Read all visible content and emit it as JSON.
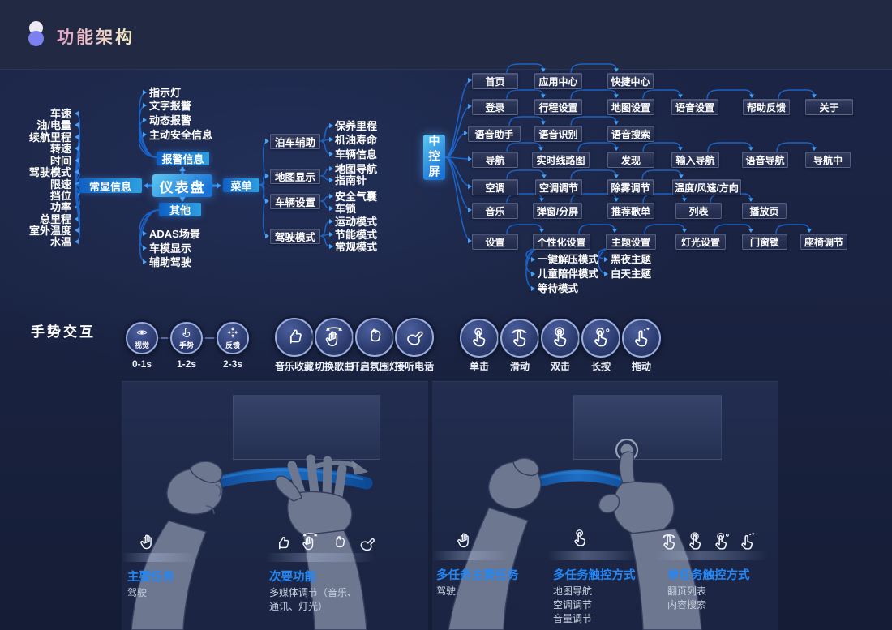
{
  "header": {
    "title": "功能架构"
  },
  "colors": {
    "accent_blue": "#2288f8",
    "line_blue": "#1c63c8",
    "node_bright_from": "#0f5fc2",
    "node_bright_to": "#2f9fe0",
    "background": "#1a2341"
  },
  "dashboard_tree": {
    "root": "仪表盘",
    "always": {
      "label": "常显信息",
      "items": [
        "车速",
        "油/电量",
        "续航里程",
        "转速",
        "时间",
        "驾驶模式",
        "限速",
        "挡位",
        "功率",
        "总里程",
        "室外温度",
        "水温"
      ]
    },
    "alarm": {
      "label": "报警信息",
      "items": [
        "指示灯",
        "文字报警",
        "动态报警",
        "主动安全信息"
      ]
    },
    "other": {
      "label": "其他",
      "items": [
        "ADAS场景",
        "车模显示",
        "辅助驾驶"
      ]
    },
    "menu": {
      "label": "菜单",
      "groups": [
        {
          "label": "泊车辅助",
          "items": [
            "保养里程",
            "机油寿命",
            "车辆信息"
          ]
        },
        {
          "label": "地图显示",
          "items": [
            "地图导航",
            "指南针"
          ]
        },
        {
          "label": "车辆设置",
          "items": [
            "安全气囊",
            "车锁"
          ]
        },
        {
          "label": "驾驶模式",
          "items": [
            "运动模式",
            "节能模式",
            "常规模式"
          ]
        }
      ]
    }
  },
  "control_tree": {
    "root": "中控屏",
    "rows": [
      {
        "label": "首页",
        "items": [
          "应用中心",
          "快捷中心"
        ]
      },
      {
        "label": "登录",
        "items": [
          "行程设置",
          "地图设置",
          "语音设置",
          "帮助反馈",
          "关于"
        ]
      },
      {
        "label": "语音助手",
        "items": [
          "语音识别",
          "语音搜索"
        ]
      },
      {
        "label": "导航",
        "items": [
          "实时线路图",
          "发现",
          "输入导航",
          "语音导航",
          "导航中"
        ]
      },
      {
        "label": "空调",
        "items": [
          "空调调节",
          "除雾调节",
          "温度/风速/方向"
        ]
      },
      {
        "label": "音乐",
        "items": [
          "弹窗/分屏",
          "推荐歌单",
          "列表",
          "播放页"
        ]
      },
      {
        "label": "设置",
        "items": [
          "个性化设置",
          "主题设置",
          "灯光设置",
          "门窗锁",
          "座椅调节"
        ]
      }
    ],
    "personal_modes": [
      "一键解压模式",
      "儿童陪伴模式",
      "等待模式"
    ],
    "theme_modes": [
      "黑夜主题",
      "白天主题"
    ]
  },
  "gesture_section": {
    "title": "手势交互",
    "phases": [
      {
        "label": "视觉",
        "time": "0-1s",
        "icon": "eye-icon"
      },
      {
        "label": "手势",
        "time": "1-2s",
        "icon": "tap-gesture-icon"
      },
      {
        "label": "反馈",
        "time": "2-3s",
        "icon": "feedback-arrows-icon"
      }
    ],
    "hand_gestures": [
      {
        "label": "音乐收藏",
        "icon": "thumbs-up-icon"
      },
      {
        "label": "切换歌曲",
        "icon": "swipe-hand-icon"
      },
      {
        "label": "开启氛围灯",
        "icon": "finger-heart-icon"
      },
      {
        "label": "接听电话",
        "icon": "call-hand-icon"
      }
    ],
    "touch_gestures": [
      {
        "label": "单击",
        "icon": "single-tap-icon"
      },
      {
        "label": "滑动",
        "icon": "slide-icon"
      },
      {
        "label": "双击",
        "icon": "double-tap-icon"
      },
      {
        "label": "长按",
        "icon": "long-press-icon"
      },
      {
        "label": "拖动",
        "icon": "drag-icon"
      }
    ]
  },
  "panels": {
    "left": {
      "tasks": [
        {
          "title": "主要任务",
          "lines": [
            "驾驶"
          ],
          "icons": [
            "open-hand-icon"
          ]
        },
        {
          "title": "次要功能",
          "lines": [
            "多媒体调节（音乐、",
            "通讯、灯光）"
          ],
          "icons": [
            "thumbs-up-icon",
            "swipe-hand-icon",
            "finger-heart-icon",
            "call-hand-icon"
          ]
        }
      ]
    },
    "right": {
      "tasks": [
        {
          "title": "多任务主要任务",
          "lines": [
            "驾驶"
          ],
          "icons": [
            "open-hand-icon"
          ]
        },
        {
          "title": "多任务触控方式",
          "lines": [
            "地图导航",
            "空调调节",
            "音量调节"
          ],
          "icons": [
            "single-tap-icon"
          ]
        },
        {
          "title": "单任务触控方式",
          "lines": [
            "翻页列表",
            "内容搜索"
          ],
          "icons": [
            "slide-icon",
            "double-tap-icon",
            "long-press-icon",
            "drag-icon"
          ]
        }
      ]
    }
  }
}
